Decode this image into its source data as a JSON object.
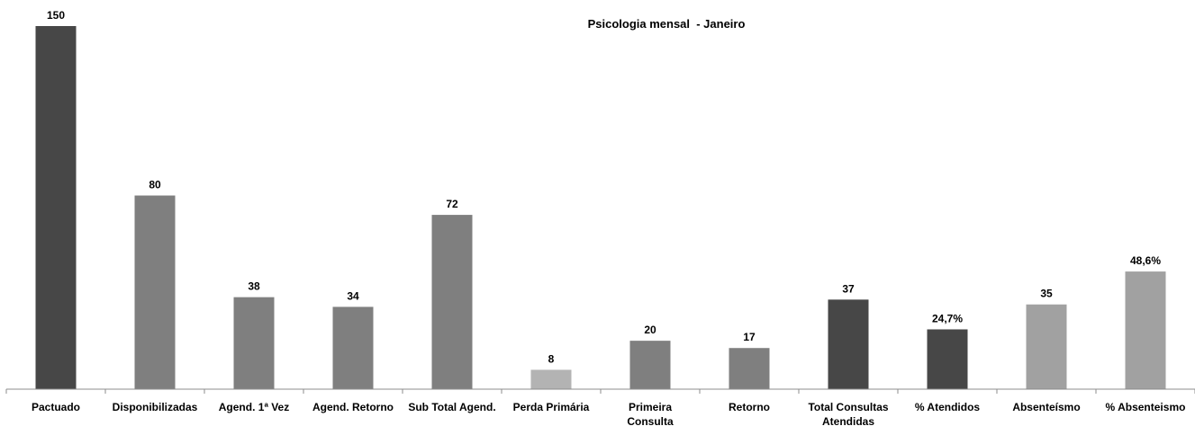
{
  "chart_data": {
    "type": "bar",
    "title": "Psicologia mensal  - Janeiro",
    "xlabel": "",
    "ylabel": "",
    "ylim": [
      0,
      150
    ],
    "grid": false,
    "legend": "none",
    "categories": [
      "Pactuado",
      "Disponibilizadas",
      "Agend. 1ª Vez",
      "Agend. Retorno",
      "Sub Total Agend.",
      "Perda Primária",
      "Primeira Consulta",
      "Retorno",
      "Total Consultas Atendidas",
      "% Atendidos",
      "Absenteísmo",
      "% Absenteismo"
    ],
    "values": [
      150,
      80,
      38,
      34,
      72,
      8,
      20,
      17,
      37,
      24.7,
      35,
      48.6
    ],
    "data_labels": [
      "150",
      "80",
      "38",
      "34",
      "72",
      "8",
      "20",
      "17",
      "37",
      "24,7%",
      "35",
      "48,6%"
    ],
    "colors": [
      "#474747",
      "#7f7f7f",
      "#7f7f7f",
      "#7f7f7f",
      "#7f7f7f",
      "#b3b3b3",
      "#7f7f7f",
      "#7f7f7f",
      "#474747",
      "#474747",
      "#a1a1a1",
      "#a1a1a1"
    ]
  }
}
